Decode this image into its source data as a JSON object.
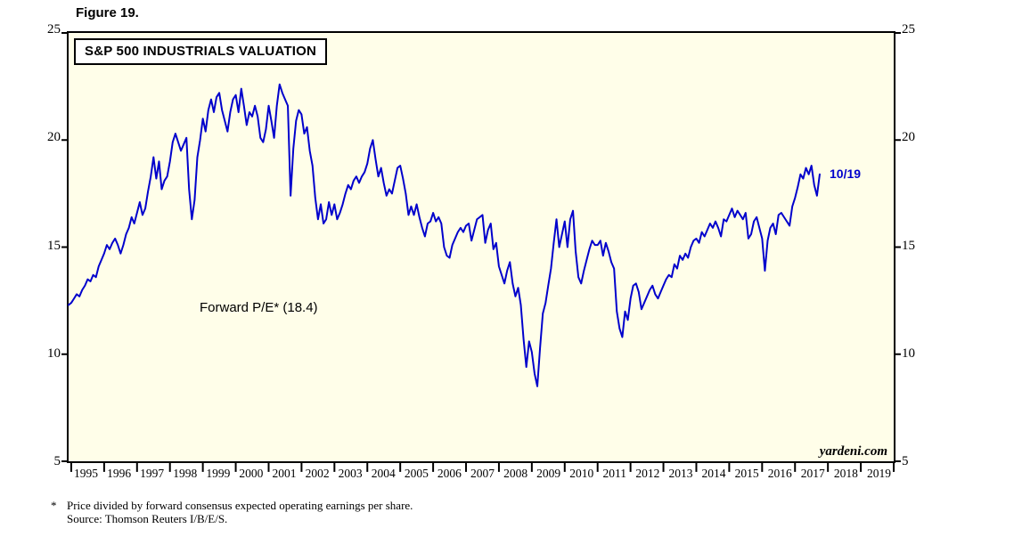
{
  "figure_label": "Figure 19.",
  "chart_title": "S&P 500 INDUSTRIALS VALUATION",
  "annotation": "Forward P/E* (18.4)",
  "end_label": "10/19",
  "watermark": "yardeni.com",
  "footnote": {
    "star": "*",
    "line1": "Price divided by forward consensus expected operating earnings per share.",
    "line2": "Source: Thomson Reuters I/B/E/S."
  },
  "colors": {
    "line": "#0000CC",
    "plot_bg": "#FFFEE9",
    "axis": "#000000",
    "label_blue": "#0000CC"
  },
  "chart_data": {
    "type": "line",
    "title": "S&P 500 INDUSTRIALS VALUATION",
    "series_name": "Forward P/E",
    "latest_value": 18.4,
    "latest_date_label": "10/19",
    "x_range": [
      1994.92,
      2020.0
    ],
    "ylim": [
      5,
      25
    ],
    "yticks": [
      5,
      10,
      15,
      20,
      25
    ],
    "grid": false,
    "legend": "none",
    "year_labels": [
      "1995",
      "1996",
      "1997",
      "1998",
      "1999",
      "2000",
      "2001",
      "2002",
      "2003",
      "2004",
      "2005",
      "2006",
      "2007",
      "2008",
      "2009",
      "2010",
      "2011",
      "2012",
      "2013",
      "2014",
      "2015",
      "2016",
      "2017",
      "2018",
      "2019"
    ],
    "start_year": 1994.9167,
    "interval_months": 1,
    "values": [
      12.3,
      12.4,
      12.6,
      12.8,
      12.7,
      13.0,
      13.2,
      13.5,
      13.4,
      13.7,
      13.6,
      14.1,
      14.4,
      14.7,
      15.1,
      14.9,
      15.2,
      15.4,
      15.1,
      14.7,
      15.1,
      15.6,
      15.9,
      16.4,
      16.1,
      16.6,
      17.1,
      16.5,
      16.8,
      17.6,
      18.3,
      19.2,
      18.2,
      19.0,
      17.7,
      18.1,
      18.3,
      19.0,
      19.9,
      20.3,
      19.9,
      19.5,
      19.8,
      20.1,
      17.7,
      16.3,
      17.2,
      19.2,
      20.0,
      21.0,
      20.4,
      21.4,
      21.9,
      21.3,
      22.0,
      22.2,
      21.4,
      20.9,
      20.4,
      21.3,
      21.9,
      22.1,
      21.3,
      22.4,
      21.6,
      20.7,
      21.3,
      21.1,
      21.6,
      21.1,
      20.1,
      19.9,
      20.5,
      21.6,
      20.9,
      20.1,
      21.6,
      22.6,
      22.2,
      21.9,
      21.6,
      17.4,
      19.6,
      20.9,
      21.4,
      21.2,
      20.3,
      20.6,
      19.5,
      18.8,
      17.3,
      16.3,
      17.0,
      16.1,
      16.3,
      17.1,
      16.5,
      17.0,
      16.3,
      16.6,
      17.0,
      17.5,
      17.9,
      17.7,
      18.1,
      18.3,
      18.0,
      18.3,
      18.5,
      18.9,
      19.6,
      20.0,
      19.1,
      18.3,
      18.7,
      18.0,
      17.4,
      17.7,
      17.5,
      18.1,
      18.7,
      18.8,
      18.2,
      17.5,
      16.5,
      16.9,
      16.5,
      17.0,
      16.4,
      15.9,
      15.5,
      16.1,
      16.2,
      16.6,
      16.2,
      16.4,
      16.1,
      15.0,
      14.6,
      14.5,
      15.1,
      15.4,
      15.7,
      15.9,
      15.7,
      16.0,
      16.1,
      15.3,
      15.8,
      16.3,
      16.4,
      16.5,
      15.2,
      15.8,
      16.1,
      14.9,
      15.2,
      14.1,
      13.7,
      13.3,
      13.9,
      14.3,
      13.3,
      12.7,
      13.1,
      12.3,
      10.7,
      9.4,
      10.6,
      10.1,
      9.1,
      8.5,
      10.3,
      11.9,
      12.4,
      13.2,
      14.0,
      15.2,
      16.3,
      15.0,
      15.6,
      16.2,
      15.0,
      16.3,
      16.7,
      14.8,
      13.6,
      13.3,
      13.9,
      14.4,
      14.9,
      15.3,
      15.1,
      15.1,
      15.3,
      14.6,
      15.2,
      14.8,
      14.3,
      14.0,
      12.0,
      11.2,
      10.8,
      12.0,
      11.6,
      12.6,
      13.2,
      13.3,
      12.9,
      12.1,
      12.4,
      12.7,
      13.0,
      13.2,
      12.8,
      12.6,
      12.9,
      13.2,
      13.5,
      13.7,
      13.6,
      14.2,
      14.0,
      14.6,
      14.4,
      14.7,
      14.5,
      15.0,
      15.3,
      15.4,
      15.2,
      15.7,
      15.5,
      15.8,
      16.1,
      15.9,
      16.2,
      15.9,
      15.5,
      16.3,
      16.2,
      16.5,
      16.8,
      16.4,
      16.7,
      16.5,
      16.3,
      16.6,
      15.4,
      15.6,
      16.2,
      16.4,
      15.9,
      15.4,
      13.9,
      15.3,
      15.9,
      16.1,
      15.6,
      16.5,
      16.6,
      16.4,
      16.2,
      16.0,
      16.9,
      17.3,
      17.8,
      18.4,
      18.2,
      18.7,
      18.4,
      18.8,
      17.9,
      17.4,
      18.4
    ]
  }
}
